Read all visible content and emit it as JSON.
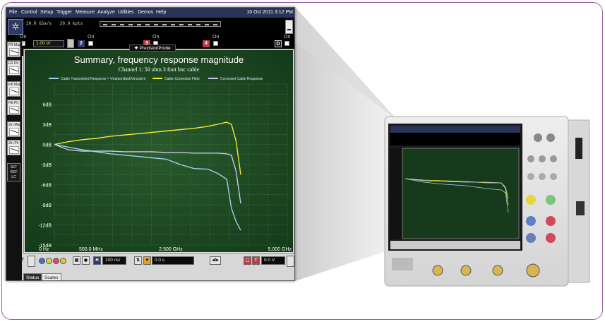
{
  "menu": {
    "items": [
      "File",
      "Control",
      "Setup",
      "Trigger",
      "Measure",
      "Analyze",
      "Utilities",
      "Demos",
      "Help"
    ],
    "datetime": "10 Oct 2011  3:12 PM"
  },
  "acquisition": {
    "sample_rate": "20.0 GSa/s",
    "memory_depth": "20.0 kpts"
  },
  "channels": [
    {
      "number": "1",
      "state": "On",
      "scale": "1.00 V/",
      "color": "#2b3c6e"
    },
    {
      "number": "2",
      "state": "On",
      "color": "#2b3c6e"
    },
    {
      "number": "3",
      "state": "On",
      "color": "#c03a48"
    },
    {
      "number": "4",
      "state": "On",
      "color": "#c03a48"
    },
    {
      "number": "D",
      "state": "On",
      "color": "#1a1a1a"
    }
  ],
  "probe_tab": "PrecisionProbe",
  "function_bar": [
    {
      "label": "FR Mag",
      "icon": "fr-magnitude-icon"
    },
    {
      "label": "FR Ph",
      "icon": "fr-phase-icon"
    },
    {
      "label": "Filt Mag",
      "icon": "filter-magnitude-icon"
    },
    {
      "label": "Filt Ph",
      "icon": "filter-phase-icon"
    },
    {
      "label": "Zin Mag",
      "icon": "zin-magnitude-icon"
    },
    {
      "label": "Zin Ph",
      "icon": "zin-phase-icon"
    }
  ],
  "set_ref": {
    "line1": "SET",
    "line2": "REF",
    "line3": "LC"
  },
  "chart_data": {
    "type": "line",
    "title": "Summary, frequency response magnitude",
    "subtitle": "Channel 1: 50 ohm 3 foot bnc cable",
    "x_tick_labels": [
      "0 Hz",
      "500.0 MHz",
      "2.500 GHz",
      "5.000 GHz"
    ],
    "x_ticks_ghz": [
      0,
      0.5,
      2.5,
      5.0
    ],
    "y_tick_labels": [
      "6dB",
      "3dB",
      "0dB",
      "-3dB",
      "-6dB",
      "-9dB",
      "-12dB",
      "-15dB"
    ],
    "xlim": [
      0,
      5.0
    ],
    "ylim": [
      -15,
      9
    ],
    "grid": true,
    "legend_position": "top",
    "series": [
      {
        "name": "Cable Transmitted Response = Vtransmitted/Vincident",
        "color": "#9fd0ee",
        "x": [
          0,
          0.3,
          0.6,
          0.9,
          1.2,
          1.5,
          1.8,
          2.1,
          2.4,
          2.7,
          3.0,
          3.3,
          3.5,
          3.7,
          3.8,
          3.9,
          4.0
        ],
        "y": [
          0,
          -0.4,
          -0.8,
          -1.1,
          -1.4,
          -1.6,
          -1.8,
          -2.0,
          -2.2,
          -3.0,
          -3.6,
          -3.7,
          -4.3,
          -5.2,
          -9.5,
          -11.5,
          -12.8
        ]
      },
      {
        "name": "Cable Correction Filter",
        "color": "#f1ea3a",
        "x": [
          0,
          0.3,
          0.6,
          0.9,
          1.2,
          1.5,
          1.8,
          2.1,
          2.4,
          2.7,
          3.0,
          3.3,
          3.5,
          3.7,
          3.8,
          3.9,
          4.0
        ],
        "y": [
          0,
          0.4,
          0.7,
          0.9,
          1.2,
          1.4,
          1.6,
          1.8,
          2.0,
          2.2,
          2.4,
          2.7,
          3.0,
          3.3,
          3.0,
          0.5,
          -4.5
        ]
      },
      {
        "name": "Corrected Cable Response",
        "color": "#c6c8e8",
        "x": [
          0,
          0.3,
          0.6,
          0.9,
          1.2,
          1.5,
          1.8,
          2.1,
          2.4,
          2.7,
          3.0,
          3.3,
          3.5,
          3.7,
          3.8,
          3.9,
          4.0
        ],
        "y": [
          0,
          -0.8,
          -1.0,
          -1.0,
          -1.0,
          -1.1,
          -1.1,
          -1.1,
          -1.2,
          -1.2,
          -1.3,
          -1.3,
          -1.3,
          -1.4,
          -1.6,
          -4.0,
          -8.8
        ]
      }
    ]
  },
  "bottom_bar": {
    "horizontal_label": "H",
    "time_scale": "100 ns/",
    "delay": "0.0 s",
    "trigger_label": "T",
    "trigger_level": "0.0 V",
    "tab_status": "Status",
    "tab_scales": "Scales"
  }
}
